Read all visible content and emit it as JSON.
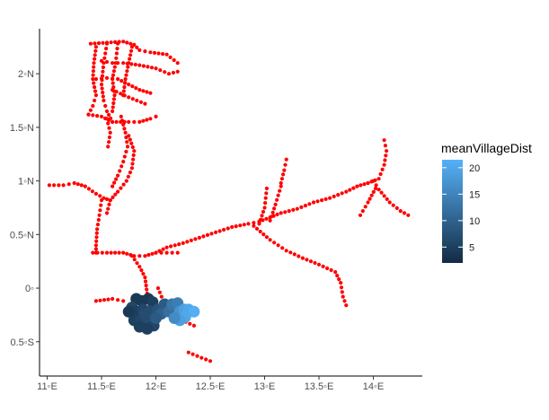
{
  "chart_data": {
    "type": "scatter",
    "title": "",
    "xlabel": "",
    "ylabel": "",
    "xlim": [
      10.93,
      14.45
    ],
    "ylim": [
      -0.82,
      2.42
    ],
    "x_ticks": [
      {
        "value": 11.0,
        "label": "11◦E"
      },
      {
        "value": 11.5,
        "label": "11.5◦E"
      },
      {
        "value": 12.0,
        "label": "12◦E"
      },
      {
        "value": 12.5,
        "label": "12.5◦E"
      },
      {
        "value": 13.0,
        "label": "13◦E"
      },
      {
        "value": 13.5,
        "label": "13.5◦E"
      },
      {
        "value": 14.0,
        "label": "14◦E"
      }
    ],
    "y_ticks": [
      {
        "value": 2.0,
        "label": "2◦N"
      },
      {
        "value": 1.5,
        "label": "1.5◦N"
      },
      {
        "value": 1.0,
        "label": "1◦N"
      },
      {
        "value": 0.5,
        "label": "0.5◦N"
      },
      {
        "value": 0.0,
        "label": "0◦"
      },
      {
        "value": -0.5,
        "label": "0.5◦S"
      }
    ],
    "grid": false,
    "legend": {
      "position": "right",
      "title": "meanVillageDist",
      "range": [
        2,
        21.5
      ],
      "ticks": [
        5,
        10,
        15,
        20
      ],
      "low_color": "#132B43",
      "high_color": "#56B1F7"
    },
    "road_color": "#ff0000",
    "roads": [
      [
        [
          11.4,
          2.28
        ],
        [
          11.55,
          2.29
        ],
        [
          11.7,
          2.3
        ],
        [
          11.8,
          2.27
        ],
        [
          11.85,
          2.22
        ],
        [
          11.95,
          2.2
        ],
        [
          12.1,
          2.18
        ],
        [
          12.2,
          2.1
        ]
      ],
      [
        [
          11.45,
          2.25
        ],
        [
          11.43,
          2.1
        ],
        [
          11.42,
          1.95
        ],
        [
          11.45,
          1.8
        ],
        [
          11.42,
          1.7
        ],
        [
          11.38,
          1.62
        ]
      ],
      [
        [
          11.55,
          2.28
        ],
        [
          11.52,
          2.1
        ],
        [
          11.5,
          1.9
        ],
        [
          11.52,
          1.75
        ],
        [
          11.55,
          1.65
        ],
        [
          11.6,
          1.55
        ]
      ],
      [
        [
          11.65,
          2.28
        ],
        [
          11.63,
          2.1
        ],
        [
          11.6,
          1.95
        ],
        [
          11.62,
          1.8
        ],
        [
          11.6,
          1.65
        ]
      ],
      [
        [
          11.78,
          2.25
        ],
        [
          11.75,
          2.1
        ],
        [
          11.72,
          1.95
        ],
        [
          11.7,
          1.8
        ]
      ],
      [
        [
          11.5,
          2.12
        ],
        [
          11.6,
          2.1
        ],
        [
          11.7,
          2.1
        ],
        [
          11.85,
          2.08
        ],
        [
          12.0,
          2.05
        ],
        [
          12.12,
          2.0
        ],
        [
          12.2,
          2.02
        ]
      ],
      [
        [
          11.45,
          1.95
        ],
        [
          11.55,
          1.96
        ],
        [
          11.65,
          1.95
        ],
        [
          11.75,
          1.9
        ],
        [
          11.85,
          1.85
        ],
        [
          11.95,
          1.82
        ]
      ],
      [
        [
          11.6,
          1.85
        ],
        [
          11.75,
          1.78
        ],
        [
          11.9,
          1.72
        ]
      ],
      [
        [
          11.38,
          1.62
        ],
        [
          11.5,
          1.6
        ],
        [
          11.6,
          1.55
        ],
        [
          11.75,
          1.55
        ],
        [
          11.85,
          1.55
        ],
        [
          11.95,
          1.58
        ],
        [
          12.0,
          1.6
        ]
      ],
      [
        [
          11.55,
          1.58
        ],
        [
          11.58,
          1.45
        ],
        [
          11.56,
          1.32
        ]
      ],
      [
        [
          11.68,
          1.6
        ],
        [
          11.72,
          1.45
        ],
        [
          11.74,
          1.32
        ],
        [
          11.7,
          1.18
        ],
        [
          11.65,
          1.05
        ],
        [
          11.6,
          0.95
        ]
      ],
      [
        [
          11.75,
          1.42
        ],
        [
          11.8,
          1.28
        ],
        [
          11.78,
          1.12
        ],
        [
          11.73,
          1.0
        ],
        [
          11.65,
          0.9
        ],
        [
          11.58,
          0.82
        ]
      ],
      [
        [
          11.02,
          0.96
        ],
        [
          11.15,
          0.96
        ],
        [
          11.25,
          0.98
        ],
        [
          11.35,
          0.95
        ],
        [
          11.45,
          0.88
        ],
        [
          11.52,
          0.84
        ],
        [
          11.58,
          0.82
        ]
      ],
      [
        [
          11.5,
          0.82
        ],
        [
          11.48,
          0.68
        ],
        [
          11.46,
          0.55
        ],
        [
          11.45,
          0.4
        ],
        [
          11.45,
          0.33
        ]
      ],
      [
        [
          11.42,
          0.33
        ],
        [
          11.55,
          0.33
        ],
        [
          11.7,
          0.33
        ],
        [
          11.8,
          0.3
        ],
        [
          11.9,
          0.3
        ],
        [
          12.0,
          0.33
        ],
        [
          12.1,
          0.33
        ],
        [
          12.2,
          0.33
        ]
      ],
      [
        [
          11.78,
          0.3
        ],
        [
          11.85,
          0.2
        ],
        [
          11.9,
          0.1
        ],
        [
          11.92,
          -0.05
        ],
        [
          11.95,
          -0.2
        ],
        [
          11.97,
          -0.38
        ]
      ],
      [
        [
          12.0,
          0.33
        ],
        [
          12.1,
          0.38
        ],
        [
          12.25,
          0.42
        ],
        [
          12.4,
          0.47
        ],
        [
          12.55,
          0.52
        ],
        [
          12.7,
          0.57
        ],
        [
          12.85,
          0.6
        ],
        [
          12.95,
          0.62
        ]
      ],
      [
        [
          12.95,
          0.62
        ],
        [
          13.05,
          0.66
        ],
        [
          13.15,
          0.7
        ],
        [
          13.3,
          0.74
        ],
        [
          13.45,
          0.8
        ],
        [
          13.6,
          0.84
        ],
        [
          13.75,
          0.9
        ],
        [
          13.85,
          0.95
        ],
        [
          13.95,
          0.98
        ]
      ],
      [
        [
          12.9,
          0.58
        ],
        [
          13.05,
          0.45
        ],
        [
          13.2,
          0.35
        ],
        [
          13.35,
          0.28
        ],
        [
          13.5,
          0.22
        ],
        [
          13.65,
          0.15
        ],
        [
          13.7,
          0.05
        ],
        [
          13.72,
          -0.08
        ],
        [
          13.75,
          -0.16
        ]
      ],
      [
        [
          12.95,
          0.6
        ],
        [
          13.0,
          0.75
        ],
        [
          13.02,
          0.93
        ]
      ],
      [
        [
          13.05,
          0.63
        ],
        [
          13.1,
          0.78
        ],
        [
          13.15,
          0.95
        ]
      ],
      [
        [
          13.15,
          0.98
        ],
        [
          13.18,
          1.1
        ],
        [
          13.2,
          1.2
        ]
      ],
      [
        [
          13.95,
          0.98
        ],
        [
          14.05,
          1.02
        ],
        [
          14.1,
          1.15
        ],
        [
          14.12,
          1.28
        ],
        [
          14.1,
          1.38
        ]
      ],
      [
        [
          14.0,
          1.0
        ],
        [
          14.05,
          0.92
        ],
        [
          14.15,
          0.8
        ],
        [
          14.25,
          0.72
        ],
        [
          14.32,
          0.68
        ]
      ],
      [
        [
          14.02,
          0.93
        ],
        [
          13.95,
          0.8
        ],
        [
          13.88,
          0.68
        ]
      ],
      [
        [
          11.58,
          0.82
        ],
        [
          11.55,
          0.7
        ]
      ],
      [
        [
          12.02,
          0.0
        ],
        [
          12.1,
          -0.2
        ],
        [
          12.2,
          -0.28
        ],
        [
          12.35,
          -0.35
        ]
      ],
      [
        [
          12.3,
          -0.6
        ],
        [
          12.42,
          -0.65
        ],
        [
          12.5,
          -0.68
        ]
      ],
      [
        [
          11.45,
          -0.12
        ],
        [
          11.6,
          -0.1
        ],
        [
          11.7,
          -0.12
        ]
      ]
    ],
    "points_dist": [
      [
        11.82,
        -0.1,
        4
      ],
      [
        11.87,
        -0.12,
        4
      ],
      [
        11.93,
        -0.1,
        4
      ],
      [
        11.97,
        -0.13,
        5
      ],
      [
        11.78,
        -0.18,
        6
      ],
      [
        11.82,
        -0.22,
        5
      ],
      [
        11.88,
        -0.2,
        6
      ],
      [
        11.95,
        -0.22,
        7
      ],
      [
        12.02,
        -0.2,
        8
      ],
      [
        12.08,
        -0.15,
        9
      ],
      [
        11.8,
        -0.3,
        5
      ],
      [
        11.86,
        -0.3,
        6
      ],
      [
        11.93,
        -0.28,
        7
      ],
      [
        11.98,
        -0.35,
        6
      ],
      [
        11.92,
        -0.38,
        5
      ],
      [
        12.05,
        -0.24,
        10
      ],
      [
        12.12,
        -0.22,
        12
      ],
      [
        12.15,
        -0.15,
        13
      ],
      [
        12.2,
        -0.14,
        14
      ],
      [
        12.22,
        -0.22,
        17
      ],
      [
        12.26,
        -0.2,
        19
      ],
      [
        12.3,
        -0.2,
        20
      ],
      [
        12.35,
        -0.22,
        21
      ],
      [
        12.27,
        -0.27,
        20
      ],
      [
        12.22,
        -0.3,
        19
      ],
      [
        12.17,
        -0.28,
        16
      ],
      [
        11.75,
        -0.22,
        4
      ],
      [
        11.9,
        -0.24,
        7
      ],
      [
        11.85,
        -0.36,
        5
      ],
      [
        12.0,
        -0.28,
        9
      ]
    ]
  }
}
